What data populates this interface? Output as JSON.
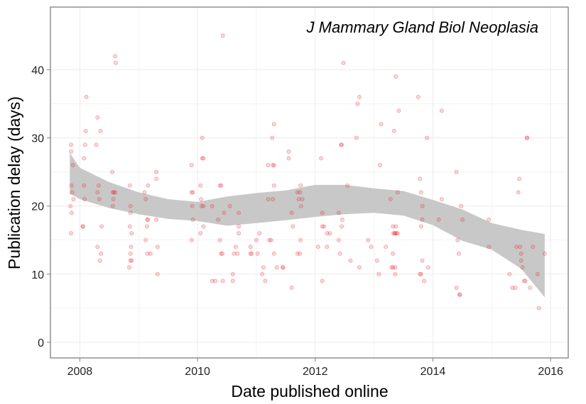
{
  "chart_data": {
    "type": "scatter",
    "title": "J Mammary Gland Biol Neoplasia",
    "xlabel": "Date published online",
    "ylabel": "Publication delay (days)",
    "x_unit": "year",
    "xlim": [
      2007.5,
      2016.3
    ],
    "ylim": [
      -2.3,
      49.2
    ],
    "x_ticks": [
      2008,
      2010,
      2012,
      2014,
      2016
    ],
    "y_ticks": [
      0,
      10,
      20,
      30,
      40
    ],
    "x_tick_labels": [
      "2008",
      "2010",
      "2012",
      "2014",
      "2016"
    ],
    "y_tick_labels": [
      "0",
      "10",
      "20",
      "30",
      "40"
    ],
    "grid": true,
    "colors": {
      "points": "#e8222e",
      "band": "#c8c8c8",
      "panel_border": "#7f7f7f",
      "grid": "#ebebeb"
    },
    "points": [
      [
        2007.85,
        29
      ],
      [
        2007.85,
        28
      ],
      [
        2007.88,
        26
      ],
      [
        2007.86,
        23
      ],
      [
        2007.87,
        22
      ],
      [
        2007.84,
        20
      ],
      [
        2007.86,
        19
      ],
      [
        2007.85,
        16
      ],
      [
        2007.89,
        21
      ],
      [
        2008.05,
        17
      ],
      [
        2008.07,
        23
      ],
      [
        2008.08,
        21
      ],
      [
        2008.09,
        29
      ],
      [
        2008.1,
        31
      ],
      [
        2008.11,
        36
      ],
      [
        2008.07,
        27
      ],
      [
        2008.05,
        17
      ],
      [
        2008.28,
        29
      ],
      [
        2008.3,
        33
      ],
      [
        2008.3,
        22
      ],
      [
        2008.32,
        23
      ],
      [
        2008.35,
        31
      ],
      [
        2008.33,
        21
      ],
      [
        2008.3,
        14
      ],
      [
        2008.36,
        13
      ],
      [
        2008.34,
        12
      ],
      [
        2008.37,
        17
      ],
      [
        2008.55,
        25
      ],
      [
        2008.56,
        22
      ],
      [
        2008.58,
        22
      ],
      [
        2008.57,
        21
      ],
      [
        2008.56,
        20
      ],
      [
        2008.6,
        42
      ],
      [
        2008.61,
        41
      ],
      [
        2008.6,
        22
      ],
      [
        2008.85,
        23
      ],
      [
        2008.85,
        17
      ],
      [
        2008.86,
        20
      ],
      [
        2008.88,
        16
      ],
      [
        2008.87,
        14
      ],
      [
        2008.86,
        13
      ],
      [
        2008.86,
        12
      ],
      [
        2008.88,
        12
      ],
      [
        2008.84,
        11
      ],
      [
        2008.86,
        19
      ],
      [
        2009.1,
        22
      ],
      [
        2009.12,
        21
      ],
      [
        2009.15,
        18
      ],
      [
        2009.14,
        17
      ],
      [
        2009.12,
        15
      ],
      [
        2009.15,
        13
      ],
      [
        2009.16,
        23
      ],
      [
        2009.2,
        13
      ],
      [
        2009.3,
        25
      ],
      [
        2009.3,
        24
      ],
      [
        2009.3,
        18
      ],
      [
        2009.32,
        14
      ],
      [
        2009.32,
        10
      ],
      [
        2009.15,
        18
      ],
      [
        2009.9,
        26
      ],
      [
        2009.9,
        22
      ],
      [
        2009.91,
        20
      ],
      [
        2009.92,
        18
      ],
      [
        2009.9,
        15
      ],
      [
        2009.92,
        22
      ],
      [
        2010.05,
        23
      ],
      [
        2010.06,
        21
      ],
      [
        2010.07,
        20
      ],
      [
        2010.08,
        27
      ],
      [
        2010.1,
        27
      ],
      [
        2010.1,
        20
      ],
      [
        2010.08,
        30
      ],
      [
        2010.05,
        16
      ],
      [
        2010.1,
        17
      ],
      [
        2010.25,
        20
      ],
      [
        2010.25,
        9
      ],
      [
        2010.3,
        9
      ],
      [
        2010.35,
        18
      ],
      [
        2010.38,
        23
      ],
      [
        2010.4,
        23
      ],
      [
        2010.38,
        15
      ],
      [
        2010.4,
        13
      ],
      [
        2010.42,
        13
      ],
      [
        2010.43,
        9
      ],
      [
        2010.45,
        19
      ],
      [
        2010.43,
        45
      ],
      [
        2010.55,
        20
      ],
      [
        2010.6,
        10
      ],
      [
        2010.62,
        13
      ],
      [
        2010.6,
        9
      ],
      [
        2010.65,
        14
      ],
      [
        2010.68,
        13
      ],
      [
        2010.7,
        17
      ],
      [
        2010.7,
        16
      ],
      [
        2010.7,
        19
      ],
      [
        2010.9,
        14
      ],
      [
        2010.92,
        13
      ],
      [
        2010.9,
        13
      ],
      [
        2011.0,
        15
      ],
      [
        2011.02,
        13
      ],
      [
        2011.05,
        16
      ],
      [
        2011.1,
        10
      ],
      [
        2011.12,
        11
      ],
      [
        2011.15,
        9
      ],
      [
        2011.2,
        26
      ],
      [
        2011.2,
        21
      ],
      [
        2011.22,
        15
      ],
      [
        2011.25,
        15
      ],
      [
        2011.28,
        26
      ],
      [
        2011.27,
        30
      ],
      [
        2011.3,
        32
      ],
      [
        2011.3,
        26
      ],
      [
        2011.28,
        21
      ],
      [
        2011.3,
        23
      ],
      [
        2011.3,
        13
      ],
      [
        2011.35,
        11
      ],
      [
        2011.45,
        11
      ],
      [
        2011.45,
        11
      ],
      [
        2011.55,
        28
      ],
      [
        2011.55,
        27
      ],
      [
        2011.6,
        19
      ],
      [
        2011.6,
        8
      ],
      [
        2011.62,
        17
      ],
      [
        2011.7,
        22
      ],
      [
        2011.72,
        21
      ],
      [
        2011.74,
        22
      ],
      [
        2011.75,
        23
      ],
      [
        2011.76,
        20
      ],
      [
        2011.78,
        21
      ],
      [
        2011.74,
        13
      ],
      [
        2011.7,
        13
      ],
      [
        2011.75,
        15
      ],
      [
        2012.05,
        14
      ],
      [
        2012.1,
        27
      ],
      [
        2012.12,
        17
      ],
      [
        2012.12,
        19
      ],
      [
        2012.15,
        17
      ],
      [
        2012.2,
        16
      ],
      [
        2012.2,
        14
      ],
      [
        2012.25,
        16
      ],
      [
        2012.12,
        9
      ],
      [
        2012.4,
        19
      ],
      [
        2012.4,
        15
      ],
      [
        2012.42,
        13
      ],
      [
        2012.44,
        29
      ],
      [
        2012.45,
        29
      ],
      [
        2012.46,
        18
      ],
      [
        2012.45,
        17
      ],
      [
        2012.48,
        41
      ],
      [
        2012.55,
        23
      ],
      [
        2012.6,
        12
      ],
      [
        2012.7,
        30
      ],
      [
        2012.72,
        35
      ],
      [
        2012.75,
        36
      ],
      [
        2012.75,
        11
      ],
      [
        2012.9,
        15
      ],
      [
        2012.95,
        14
      ],
      [
        2013.05,
        12
      ],
      [
        2013.08,
        10
      ],
      [
        2013.1,
        26
      ],
      [
        2013.12,
        32
      ],
      [
        2013.2,
        14
      ],
      [
        2013.28,
        21
      ],
      [
        2013.3,
        11
      ],
      [
        2013.32,
        11
      ],
      [
        2013.32,
        13
      ],
      [
        2013.32,
        17
      ],
      [
        2013.33,
        16
      ],
      [
        2013.35,
        16
      ],
      [
        2013.36,
        16
      ],
      [
        2013.36,
        10
      ],
      [
        2013.37,
        17
      ],
      [
        2013.36,
        11
      ],
      [
        2013.34,
        31
      ],
      [
        2013.37,
        39
      ],
      [
        2013.4,
        22
      ],
      [
        2013.42,
        34
      ],
      [
        2013.4,
        16
      ],
      [
        2013.38,
        16
      ],
      [
        2013.75,
        36
      ],
      [
        2013.78,
        24
      ],
      [
        2013.8,
        22
      ],
      [
        2013.82,
        18
      ],
      [
        2013.8,
        17
      ],
      [
        2013.82,
        12
      ],
      [
        2013.78,
        10
      ],
      [
        2013.8,
        10
      ],
      [
        2013.82,
        20
      ],
      [
        2013.85,
        9
      ],
      [
        2013.9,
        30
      ],
      [
        2013.92,
        11
      ],
      [
        2014.1,
        18
      ],
      [
        2014.15,
        34
      ],
      [
        2014.15,
        21
      ],
      [
        2014.4,
        25
      ],
      [
        2014.42,
        15
      ],
      [
        2014.44,
        13
      ],
      [
        2014.4,
        8
      ],
      [
        2014.45,
        7
      ],
      [
        2014.46,
        7
      ],
      [
        2014.5,
        18
      ],
      [
        2014.48,
        20
      ],
      [
        2014.95,
        18
      ],
      [
        2014.95,
        14
      ],
      [
        2015.3,
        10
      ],
      [
        2015.35,
        8
      ],
      [
        2015.4,
        8
      ],
      [
        2015.42,
        14
      ],
      [
        2015.45,
        22
      ],
      [
        2015.47,
        24
      ],
      [
        2015.5,
        13
      ],
      [
        2015.48,
        14
      ],
      [
        2015.5,
        12
      ],
      [
        2015.52,
        11
      ],
      [
        2015.55,
        9
      ],
      [
        2015.57,
        9
      ],
      [
        2015.6,
        30
      ],
      [
        2015.6,
        30
      ],
      [
        2015.65,
        8
      ],
      [
        2015.7,
        14
      ],
      [
        2015.78,
        10
      ],
      [
        2015.8,
        5
      ],
      [
        2015.9,
        13
      ]
    ],
    "smooth": {
      "x": [
        2007.83,
        2008.0,
        2008.5,
        2009.0,
        2009.5,
        2010.0,
        2010.5,
        2011.0,
        2011.5,
        2012.0,
        2012.5,
        2013.0,
        2013.5,
        2014.0,
        2014.5,
        2015.0,
        2015.5,
        2015.9
      ],
      "upper": [
        27.8,
        25.6,
        23.5,
        22.0,
        21.0,
        20.6,
        21.4,
        21.9,
        22.3,
        23.1,
        23.1,
        22.6,
        22.2,
        20.9,
        19.5,
        17.5,
        16.5,
        15.9
      ],
      "lower": [
        21.8,
        21.0,
        19.7,
        18.8,
        18.1,
        17.8,
        17.1,
        17.5,
        17.9,
        18.4,
        18.8,
        19.0,
        18.6,
        17.2,
        14.9,
        13.6,
        10.8,
        6.6
      ]
    }
  }
}
